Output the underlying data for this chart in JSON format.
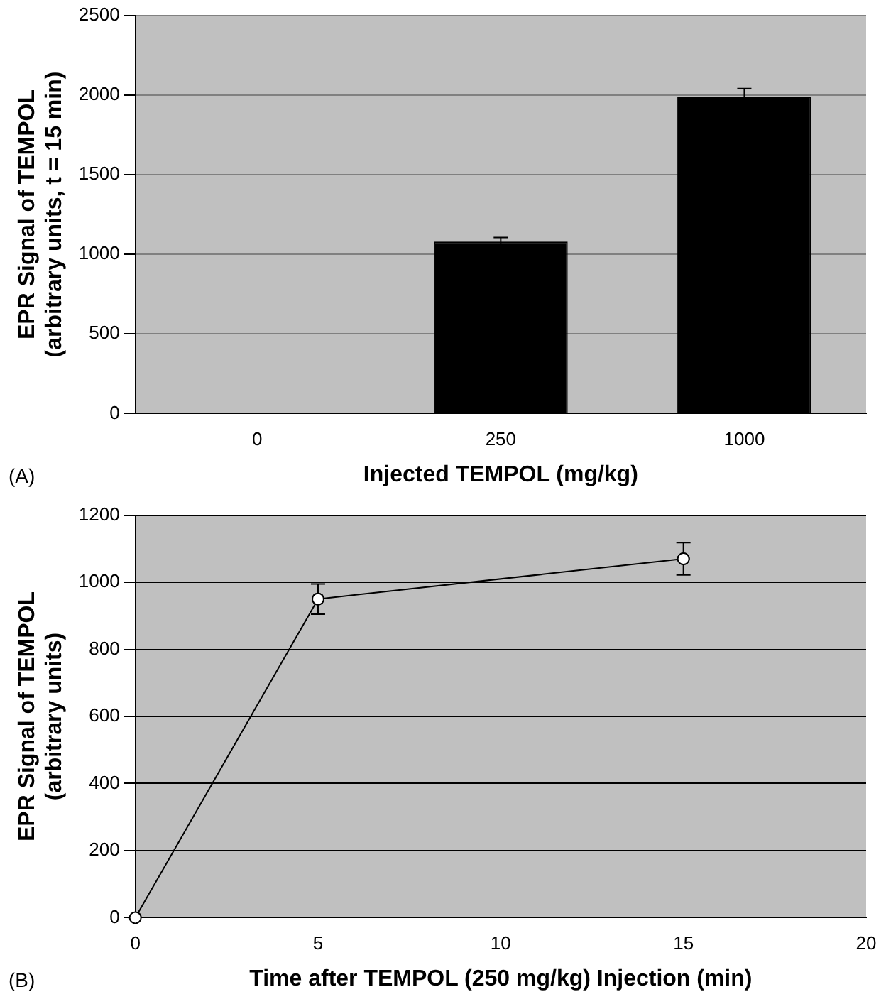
{
  "chart_data": [
    {
      "type": "bar",
      "ylabel": "EPR Signal of TEMPOL\n(arbitrary units, t = 15 min)",
      "xlabel": "Injected TEMPOL (mg/kg)",
      "categories": [
        "0",
        "250",
        "1000"
      ],
      "series": [
        {
          "color": "#000000",
          "values": [
            0,
            1080,
            1990
          ],
          "errors": [
            null,
            25,
            50
          ]
        }
      ],
      "ylim": [
        0,
        2500
      ],
      "yticks": [
        0,
        500,
        1000,
        1500,
        2000,
        2500
      ],
      "grid": "y",
      "legend": false,
      "annotations": [
        "(A)"
      ]
    },
    {
      "type": "line",
      "ylabel": "EPR Signal of TEMPOL\n(arbitrary units)",
      "xlabel": "Time after TEMPOL (250 mg/kg) Injection (min)",
      "x": [
        0,
        5,
        15
      ],
      "series": [
        {
          "color": "#000000",
          "values": [
            0,
            950,
            1070
          ],
          "errors": [
            null,
            45,
            48
          ]
        }
      ],
      "xlim": [
        0,
        20
      ],
      "xticks": [
        0,
        5,
        10,
        15,
        20
      ],
      "ylim": [
        0,
        1200
      ],
      "yticks": [
        0,
        200,
        400,
        600,
        800,
        1000,
        1200
      ],
      "grid": "y",
      "legend": false,
      "marker": "circle",
      "annotations": [
        "(B)"
      ]
    }
  ]
}
